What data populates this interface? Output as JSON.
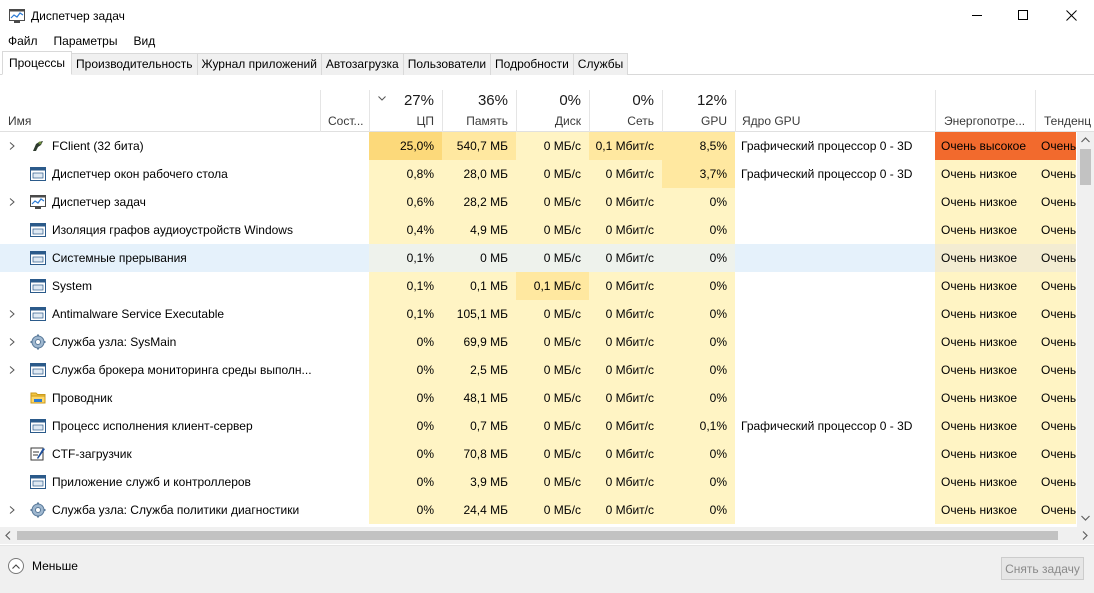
{
  "window": {
    "title": "Диспетчер задач"
  },
  "menu": [
    {
      "label": "Файл"
    },
    {
      "label": "Параметры"
    },
    {
      "label": "Вид"
    }
  ],
  "tabs": [
    {
      "label": "Процессы",
      "active": true
    },
    {
      "label": "Производительность"
    },
    {
      "label": "Журнал приложений"
    },
    {
      "label": "Автозагрузка"
    },
    {
      "label": "Пользователи"
    },
    {
      "label": "Подробности"
    },
    {
      "label": "Службы"
    }
  ],
  "columns": {
    "name": "Имя",
    "status": "Сост...",
    "cpu": {
      "pct": "27%",
      "label": "ЦП"
    },
    "memory": {
      "pct": "36%",
      "label": "Память"
    },
    "disk": {
      "pct": "0%",
      "label": "Диск"
    },
    "network": {
      "pct": "0%",
      "label": "Сеть"
    },
    "gpu": {
      "pct": "12%",
      "label": "GPU"
    },
    "gpu_engine": "Ядро GPU",
    "power": "Энергопотре...",
    "trend": "Тенденц"
  },
  "colors": {
    "heat_low": "#fff4c4",
    "heat_mid": "#ffe8a0",
    "heat_cpu_high": "#fcd97a",
    "power_very_high": "#f26a2d",
    "selected": "#e5f1fb",
    "accent": "#0078d7"
  },
  "processes": [
    {
      "name": "FClient (32 бита)",
      "icon": "fclient-icon",
      "expandable": true,
      "cpu": "25,0%",
      "memory": "540,7 МБ",
      "disk": "0 МБ/с",
      "network": "0,1 Мбит/с",
      "gpu": "8,5%",
      "gpu_engine": "Графический процессор 0 - 3D",
      "power": "Очень высокое",
      "trend": "Очень высокое"
    },
    {
      "name": "Диспетчер окон рабочего стола",
      "icon": "window-app-icon",
      "expandable": false,
      "cpu": "0,8%",
      "memory": "28,0 МБ",
      "disk": "0 МБ/с",
      "network": "0 Мбит/с",
      "gpu": "3,7%",
      "gpu_engine": "Графический процессор 0 - 3D",
      "power": "Очень низкое",
      "trend": "Очень низкое"
    },
    {
      "name": "Диспетчер задач",
      "icon": "task-manager-icon",
      "expandable": true,
      "cpu": "0,6%",
      "memory": "28,2 МБ",
      "disk": "0 МБ/с",
      "network": "0 Мбит/с",
      "gpu": "0%",
      "gpu_engine": "",
      "power": "Очень низкое",
      "trend": "Очень низкое"
    },
    {
      "name": "Изоляция графов аудиоустройств Windows",
      "icon": "window-app-icon",
      "expandable": false,
      "cpu": "0,4%",
      "memory": "4,9 МБ",
      "disk": "0 МБ/с",
      "network": "0 Мбит/с",
      "gpu": "0%",
      "gpu_engine": "",
      "power": "Очень низкое",
      "trend": "Очень низкое"
    },
    {
      "name": "Системные прерывания",
      "icon": "window-app-icon",
      "expandable": false,
      "selected": true,
      "cpu": "0,1%",
      "memory": "0 МБ",
      "disk": "0 МБ/с",
      "network": "0 Мбит/с",
      "gpu": "0%",
      "gpu_engine": "",
      "power": "Очень низкое",
      "trend": "Очень низкое"
    },
    {
      "name": "System",
      "icon": "window-app-icon",
      "expandable": false,
      "cpu": "0,1%",
      "memory": "0,1 МБ",
      "disk": "0,1 МБ/с",
      "network": "0 Мбит/с",
      "gpu": "0%",
      "gpu_engine": "",
      "power": "Очень низкое",
      "trend": "Очень низкое"
    },
    {
      "name": "Antimalware Service Executable",
      "icon": "window-app-icon",
      "expandable": true,
      "cpu": "0,1%",
      "memory": "105,1 МБ",
      "disk": "0 МБ/с",
      "network": "0 Мбит/с",
      "gpu": "0%",
      "gpu_engine": "",
      "power": "Очень низкое",
      "trend": "Очень низкое"
    },
    {
      "name": "Служба узла: SysMain",
      "icon": "gear-icon",
      "expandable": true,
      "cpu": "0%",
      "memory": "69,9 МБ",
      "disk": "0 МБ/с",
      "network": "0 Мбит/с",
      "gpu": "0%",
      "gpu_engine": "",
      "power": "Очень низкое",
      "trend": "Очень низкое"
    },
    {
      "name": "Служба брокера мониторинга среды выполн...",
      "icon": "window-app-icon",
      "expandable": true,
      "cpu": "0%",
      "memory": "2,5 МБ",
      "disk": "0 МБ/с",
      "network": "0 Мбит/с",
      "gpu": "0%",
      "gpu_engine": "",
      "power": "Очень низкое",
      "trend": "Очень низкое"
    },
    {
      "name": "Проводник",
      "icon": "folder-icon",
      "expandable": false,
      "cpu": "0%",
      "memory": "48,1 МБ",
      "disk": "0 МБ/с",
      "network": "0 Мбит/с",
      "gpu": "0%",
      "gpu_engine": "",
      "power": "Очень низкое",
      "trend": "Очень низкое"
    },
    {
      "name": "Процесс исполнения клиент-сервер",
      "icon": "window-app-icon",
      "expandable": false,
      "cpu": "0%",
      "memory": "0,7 МБ",
      "disk": "0 МБ/с",
      "network": "0 Мбит/с",
      "gpu": "0,1%",
      "gpu_engine": "Графический процессор 0 - 3D",
      "power": "Очень низкое",
      "trend": "Очень низкое"
    },
    {
      "name": "CTF-загрузчик",
      "icon": "pen-icon",
      "expandable": false,
      "cpu": "0%",
      "memory": "70,8 МБ",
      "disk": "0 МБ/с",
      "network": "0 Мбит/с",
      "gpu": "0%",
      "gpu_engine": "",
      "power": "Очень низкое",
      "trend": "Очень низкое"
    },
    {
      "name": "Приложение служб и контроллеров",
      "icon": "window-app-icon",
      "expandable": false,
      "cpu": "0%",
      "memory": "3,9 МБ",
      "disk": "0 МБ/с",
      "network": "0 Мбит/с",
      "gpu": "0%",
      "gpu_engine": "",
      "power": "Очень низкое",
      "trend": "Очень низкое"
    },
    {
      "name": "Служба узла: Служба политики диагностики",
      "icon": "gear-icon",
      "expandable": true,
      "cpu": "0%",
      "memory": "24,4 МБ",
      "disk": "0 МБ/с",
      "network": "0 Мбит/с",
      "gpu": "0%",
      "gpu_engine": "",
      "power": "Очень низкое",
      "trend": "Очень низкое"
    }
  ],
  "footer": {
    "fewer_details": "Меньше",
    "end_task": "Снять задачу"
  }
}
